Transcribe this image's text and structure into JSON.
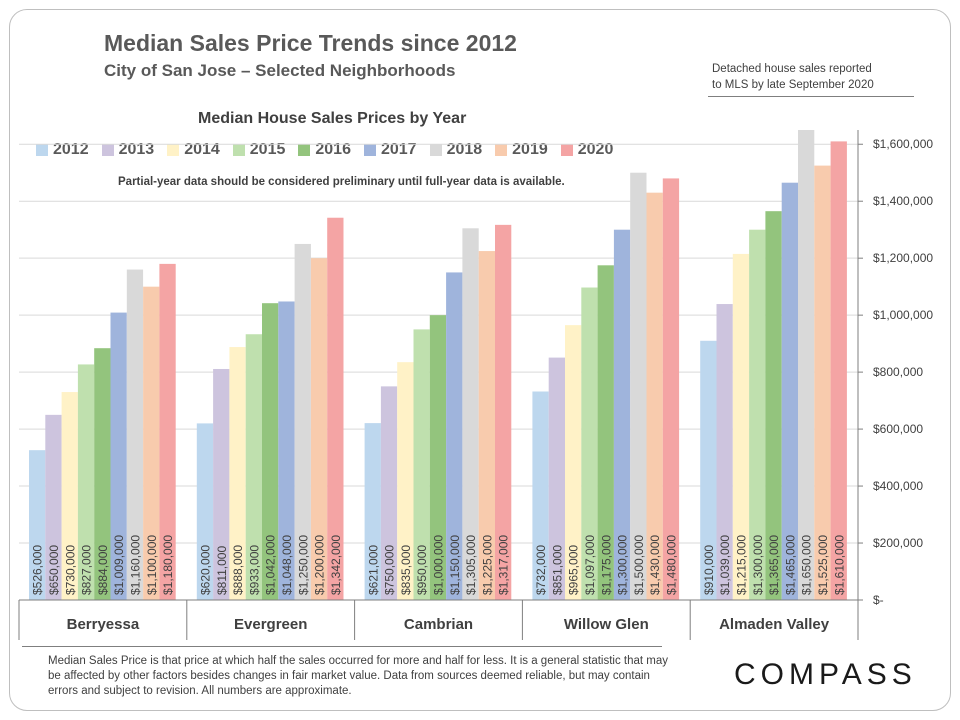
{
  "header": {
    "title": "Median Sales Price Trends since 2012",
    "subtitle": "City of San Jose – Selected Neighborhoods",
    "note_line1": "Detached house sales reported",
    "note_line2": "to MLS by late September 2020"
  },
  "partial_note": "Partial-year data should be considered preliminary until full-year data is available.",
  "footnote": "Median Sales Price is that price at which half the sales occurred for more and half for less. It is a general statistic that may be affected by other factors besides changes in fair market value. Data from sources deemed reliable, but may contain errors and subject to revision.  All numbers are approximate.",
  "logo": "COMPASS",
  "chart_data": {
    "type": "bar",
    "title": "Median House Sales Prices by Year",
    "categories": [
      "Berryessa",
      "Evergreen",
      "Cambrian",
      "Willow Glen",
      "Almaden Valley"
    ],
    "ylim": [
      0,
      1650000
    ],
    "y_ticks": [
      0,
      200000,
      400000,
      600000,
      800000,
      1000000,
      1200000,
      1400000,
      1600000
    ],
    "y_tick_labels": [
      "$-",
      "$200,000",
      "$400,000",
      "$600,000",
      "$800,000",
      "$1,000,000",
      "$1,200,000",
      "$1,400,000",
      "$1,600,000"
    ],
    "y_axis_side": "right",
    "grid": true,
    "legend_position": "top",
    "series": [
      {
        "name": "2012",
        "color": "#bdd7ee",
        "values": [
          526000,
          620000,
          621000,
          732000,
          910000
        ],
        "labels": [
          "$526,000",
          "$620,000",
          "$621,000",
          "$732,000",
          "$910,000"
        ]
      },
      {
        "name": "2013",
        "color": "#cdc4de",
        "values": [
          650000,
          811000,
          750000,
          851000,
          1039000
        ],
        "labels": [
          "$650,000",
          "$811,000",
          "$750,000",
          "$851,000",
          "$1,039,000"
        ]
      },
      {
        "name": "2014",
        "color": "#fff2c7",
        "values": [
          730000,
          888000,
          835000,
          965000,
          1215000
        ],
        "labels": [
          "$730,000",
          "$888,000",
          "$835,000",
          "$965,000",
          "$1,215,000"
        ]
      },
      {
        "name": "2015",
        "color": "#bfe0ae",
        "values": [
          827000,
          933000,
          950000,
          1097000,
          1300000
        ],
        "labels": [
          "$827,000",
          "$933,000",
          "$950,000",
          "$1,097,000",
          "$1,300,000"
        ]
      },
      {
        "name": "2016",
        "color": "#93c47d",
        "values": [
          884000,
          1042000,
          1000000,
          1175000,
          1365000
        ],
        "labels": [
          "$884,000",
          "$1,042,000",
          "$1,000,000",
          "$1,175,000",
          "$1,365,000"
        ]
      },
      {
        "name": "2017",
        "color": "#9fb4dc",
        "values": [
          1009000,
          1048000,
          1150000,
          1300000,
          1465000
        ],
        "labels": [
          "$1,009,000",
          "$1,048,000",
          "$1,150,000",
          "$1,300,000",
          "$1,465,000"
        ]
      },
      {
        "name": "2018",
        "color": "#d9d9d9",
        "values": [
          1160000,
          1250000,
          1305000,
          1500000,
          1650000
        ],
        "labels": [
          "$1,160,000",
          "$1,250,000",
          "$1,305,000",
          "$1,500,000",
          "$1,650,000"
        ]
      },
      {
        "name": "2019",
        "color": "#f8cbad",
        "values": [
          1100000,
          1200000,
          1225000,
          1430000,
          1525000
        ],
        "labels": [
          "$1,100,000",
          "$1,200,000",
          "$1,225,000",
          "$1,430,000",
          "$1,525,000"
        ]
      },
      {
        "name": "2020",
        "color": "#f4a4a4",
        "values": [
          1180000,
          1342000,
          1317000,
          1480000,
          1610000
        ],
        "labels": [
          "$1,180,000",
          "$1,342,000",
          "$1,317,000",
          "$1,480,000",
          "$1,610,000"
        ]
      }
    ]
  }
}
